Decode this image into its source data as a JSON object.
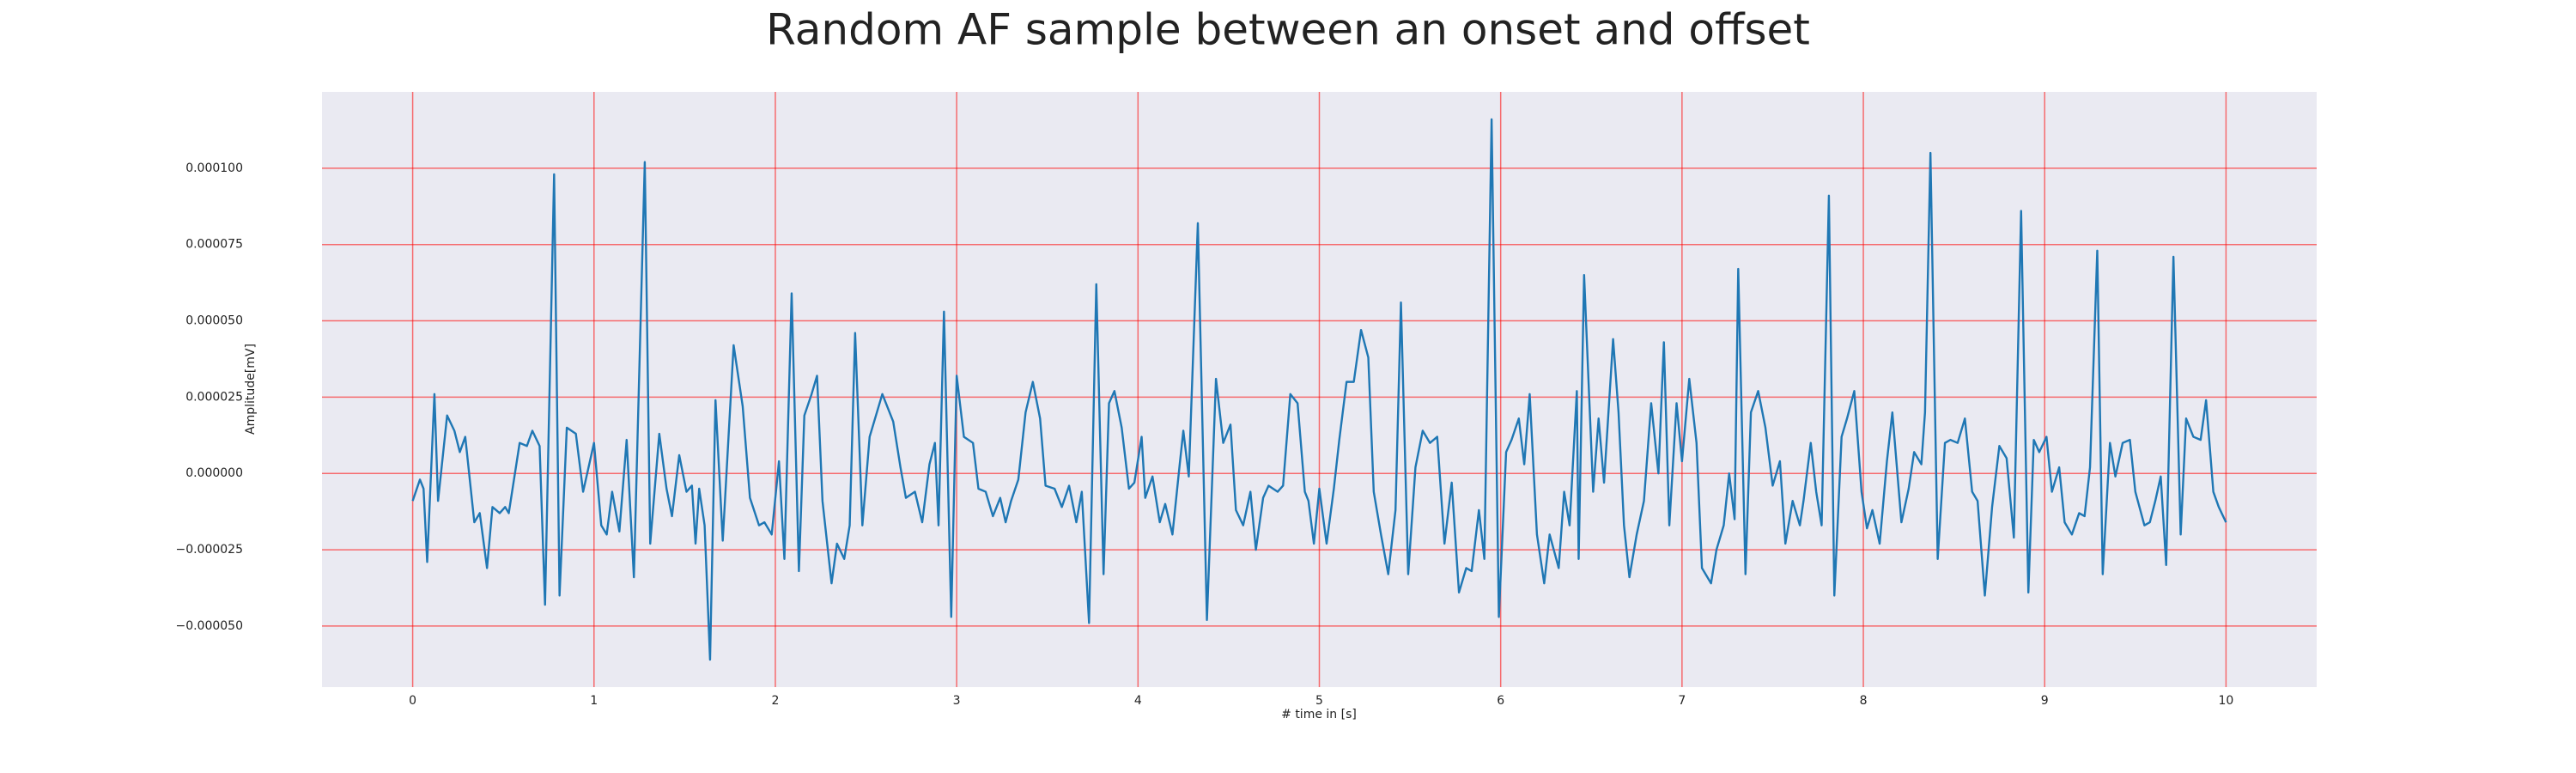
{
  "chart_data": {
    "type": "line",
    "title": "Random AF sample between an onset and offset",
    "xlabel": "# time in [s]",
    "ylabel": "Amplitude[mV]",
    "color": "#1f77b4",
    "grid": true,
    "grid_color": "#ff0000",
    "background": "#eaeaf2",
    "xlim": [
      -0.5,
      10.5
    ],
    "ylim": [
      -7e-05,
      0.000125
    ],
    "xticks": [
      0,
      1,
      2,
      3,
      4,
      5,
      6,
      7,
      8,
      9,
      10
    ],
    "yticks": [
      {
        "value": -5e-05,
        "label": "−0.000050"
      },
      {
        "value": -2.5e-05,
        "label": "−0.000025"
      },
      {
        "value": 0,
        "label": "0.000000"
      },
      {
        "value": 2.5e-05,
        "label": "0.000025"
      },
      {
        "value": 5e-05,
        "label": "0.000050"
      },
      {
        "value": 7.5e-05,
        "label": "0.000075"
      },
      {
        "value": 0.0001,
        "label": "0.000100"
      }
    ],
    "x": [
      0,
      0.04,
      0.06,
      0.08,
      0.12,
      0.14,
      0.19,
      0.23,
      0.26,
      0.29,
      0.34,
      0.37,
      0.41,
      0.44,
      0.48,
      0.51,
      0.53,
      0.59,
      0.63,
      0.66,
      0.7,
      0.73,
      0.78,
      0.81,
      0.85,
      0.9,
      0.94,
      1.0,
      1.04,
      1.07,
      1.1,
      1.14,
      1.18,
      1.22,
      1.28,
      1.31,
      1.36,
      1.4,
      1.43,
      1.47,
      1.51,
      1.54,
      1.56,
      1.58,
      1.61,
      1.64,
      1.67,
      1.71,
      1.77,
      1.82,
      1.86,
      1.91,
      1.94,
      1.98,
      2.02,
      2.05,
      2.09,
      2.13,
      2.16,
      2.2,
      2.23,
      2.26,
      2.31,
      2.34,
      2.38,
      2.41,
      2.44,
      2.48,
      2.52,
      2.59,
      2.65,
      2.69,
      2.72,
      2.77,
      2.81,
      2.85,
      2.88,
      2.9,
      2.93,
      2.97,
      3.0,
      3.04,
      3.09,
      3.12,
      3.16,
      3.2,
      3.24,
      3.27,
      3.3,
      3.34,
      3.38,
      3.42,
      3.46,
      3.49,
      3.54,
      3.58,
      3.62,
      3.66,
      3.69,
      3.73,
      3.77,
      3.81,
      3.84,
      3.87,
      3.91,
      3.95,
      3.98,
      4.02,
      4.04,
      4.08,
      4.12,
      4.15,
      4.19,
      4.23,
      4.25,
      4.28,
      4.33,
      4.38,
      4.43,
      4.47,
      4.51,
      4.54,
      4.58,
      4.62,
      4.65,
      4.69,
      4.72,
      4.77,
      4.8,
      4.84,
      4.88,
      4.92,
      4.94,
      4.97,
      5.0,
      5.04,
      5.08,
      5.11,
      5.15,
      5.19,
      5.23,
      5.27,
      5.3,
      5.34,
      5.38,
      5.42,
      5.45,
      5.49,
      5.53,
      5.57,
      5.61,
      5.65,
      5.69,
      5.73,
      5.77,
      5.81,
      5.84,
      5.88,
      5.91,
      5.95,
      5.99,
      6.03,
      6.06,
      6.1,
      6.13,
      6.16,
      6.2,
      6.24,
      6.27,
      6.32,
      6.35,
      6.38,
      6.42,
      6.43,
      6.46,
      6.51,
      6.54,
      6.57,
      6.62,
      6.65,
      6.68,
      6.71,
      6.75,
      6.79,
      6.83,
      6.87,
      6.9,
      6.93,
      6.97,
      7.0,
      7.04,
      7.08,
      7.11,
      7.16,
      7.19,
      7.23,
      7.26,
      7.29,
      7.31,
      7.35,
      7.38,
      7.42,
      7.46,
      7.5,
      7.54,
      7.57,
      7.61,
      7.65,
      7.67,
      7.71,
      7.74,
      7.77,
      7.81,
      7.84,
      7.88,
      7.91,
      7.95,
      7.99,
      8.02,
      8.05,
      8.09,
      8.13,
      8.16,
      8.21,
      8.25,
      8.28,
      8.32,
      8.34,
      8.37,
      8.41,
      8.45,
      8.48,
      8.52,
      8.56,
      8.6,
      8.63,
      8.67,
      8.71,
      8.75,
      8.79,
      8.83,
      8.87,
      8.91,
      8.94,
      8.97,
      9.01,
      9.04,
      9.08,
      9.11,
      9.15,
      9.19,
      9.22,
      9.25,
      9.29,
      9.32,
      9.36,
      9.39,
      9.43,
      9.47,
      9.5,
      9.55,
      9.58,
      9.61,
      9.64,
      9.67,
      9.71,
      9.75,
      9.78,
      9.82,
      9.86,
      9.89,
      9.93,
      9.96,
      10.0
    ],
    "values": [
      -9e-06,
      -2e-06,
      -5e-06,
      -2.9e-05,
      2.6e-05,
      -9e-06,
      1.9e-05,
      1.4e-05,
      7e-06,
      1.2e-05,
      -1.6e-05,
      -1.3e-05,
      -3.1e-05,
      -1.1e-05,
      -1.3e-05,
      -1.1e-05,
      -1.3e-05,
      1e-05,
      9e-06,
      1.4e-05,
      9e-06,
      -4.3e-05,
      9.8e-05,
      -4e-05,
      1.5e-05,
      1.3e-05,
      -6e-06,
      1e-05,
      -1.7e-05,
      -2e-05,
      -6e-06,
      -1.9e-05,
      1.1e-05,
      -3.4e-05,
      0.000102,
      -2.3e-05,
      1.3e-05,
      -5e-06,
      -1.4e-05,
      6e-06,
      -6e-06,
      -4e-06,
      -2.3e-05,
      -5e-06,
      -1.7e-05,
      -6.1e-05,
      2.4e-05,
      -2.2e-05,
      4.2e-05,
      2.2e-05,
      -8e-06,
      -1.7e-05,
      -1.6e-05,
      -2e-05,
      4e-06,
      -2.8e-05,
      5.9e-05,
      -3.2e-05,
      1.9e-05,
      2.6e-05,
      3.2e-05,
      -9e-06,
      -3.6e-05,
      -2.3e-05,
      -2.8e-05,
      -1.7e-05,
      4.6e-05,
      -1.7e-05,
      1.2e-05,
      2.6e-05,
      1.7e-05,
      2e-06,
      -8e-06,
      -6e-06,
      -1.6e-05,
      3e-06,
      1e-05,
      -1.7e-05,
      5.3e-05,
      -4.7e-05,
      3.2e-05,
      1.2e-05,
      1e-05,
      -5e-06,
      -6e-06,
      -1.4e-05,
      -8e-06,
      -1.6e-05,
      -9e-06,
      -2e-06,
      2e-05,
      3e-05,
      1.8e-05,
      -4e-06,
      -5e-06,
      -1.1e-05,
      -4e-06,
      -1.6e-05,
      -6e-06,
      -4.9e-05,
      6.2e-05,
      -3.3e-05,
      2.3e-05,
      2.7e-05,
      1.5e-05,
      -5e-06,
      -3e-06,
      1.2e-05,
      -8e-06,
      -1e-06,
      -1.6e-05,
      -1e-05,
      -2e-05,
      3e-06,
      1.4e-05,
      -1e-06,
      8.2e-05,
      -4.8e-05,
      3.1e-05,
      1e-05,
      1.6e-05,
      -1.2e-05,
      -1.7e-05,
      -6e-06,
      -2.5e-05,
      -8e-06,
      -4e-06,
      -6e-06,
      -4e-06,
      2.6e-05,
      2.3e-05,
      -6e-06,
      -9e-06,
      -2.3e-05,
      -5e-06,
      -2.3e-05,
      -5e-06,
      1.1e-05,
      3e-05,
      3e-05,
      4.7e-05,
      3.8e-05,
      -6e-06,
      -2e-05,
      -3.3e-05,
      -1.2e-05,
      5.6e-05,
      -3.3e-05,
      2e-06,
      1.4e-05,
      1e-05,
      1.2e-05,
      -2.3e-05,
      -3e-06,
      -3.9e-05,
      -3.1e-05,
      -3.2e-05,
      -1.2e-05,
      -2.8e-05,
      0.000116,
      -4.7e-05,
      7e-06,
      1.1e-05,
      1.8e-05,
      3e-06,
      2.6e-05,
      -2e-05,
      -3.6e-05,
      -2e-05,
      -3.1e-05,
      -6e-06,
      -1.7e-05,
      2.7e-05,
      -2.8e-05,
      6.5e-05,
      -6e-06,
      1.8e-05,
      -3e-06,
      4.4e-05,
      2e-05,
      -1.7e-05,
      -3.4e-05,
      -2e-05,
      -9e-06,
      2.3e-05,
      0,
      4.3e-05,
      -1.7e-05,
      2.3e-05,
      4e-06,
      3.1e-05,
      1e-05,
      -3.1e-05,
      -3.6e-05,
      -2.5e-05,
      -1.7e-05,
      0,
      -1.5e-05,
      6.7e-05,
      -3.3e-05,
      2e-05,
      2.7e-05,
      1.5e-05,
      -4e-06,
      4e-06,
      -2.3e-05,
      -9e-06,
      -1.7e-05,
      -9e-06,
      1e-05,
      -6e-06,
      -1.7e-05,
      9.1e-05,
      -4e-05,
      1.2e-05,
      1.8e-05,
      2.7e-05,
      -6e-06,
      -1.8e-05,
      -1.2e-05,
      -2.3e-05,
      4e-06,
      2e-05,
      -1.6e-05,
      -5e-06,
      7e-06,
      3e-06,
      2e-05,
      0.000105,
      -2.8e-05,
      1e-05,
      1.1e-05,
      1e-05,
      1.8e-05,
      -6e-06,
      -9e-06,
      -4e-05,
      -1.1e-05,
      9e-06,
      5e-06,
      -2.1e-05,
      8.6e-05,
      -3.9e-05,
      1.1e-05,
      7e-06,
      1.2e-05,
      -6e-06,
      2e-06,
      -1.6e-05,
      -2e-05,
      -1.3e-05,
      -1.4e-05,
      2e-06,
      7.3e-05,
      -3.3e-05,
      1e-05,
      -1e-06,
      1e-05,
      1.1e-05,
      -6e-06,
      -1.7e-05,
      -1.6e-05,
      -9e-06,
      -1e-06,
      -3e-05,
      7.1e-05,
      -2e-05,
      1.8e-05,
      1.2e-05,
      1.1e-05,
      2.4e-05,
      -6e-06,
      -1.1e-05,
      -1.6e-05
    ]
  }
}
